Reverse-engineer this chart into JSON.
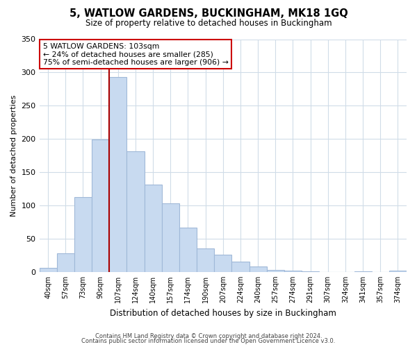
{
  "title": "5, WATLOW GARDENS, BUCKINGHAM, MK18 1GQ",
  "subtitle": "Size of property relative to detached houses in Buckingham",
  "xlabel": "Distribution of detached houses by size in Buckingham",
  "ylabel": "Number of detached properties",
  "bar_labels": [
    "40sqm",
    "57sqm",
    "73sqm",
    "90sqm",
    "107sqm",
    "124sqm",
    "140sqm",
    "157sqm",
    "174sqm",
    "190sqm",
    "207sqm",
    "224sqm",
    "240sqm",
    "257sqm",
    "274sqm",
    "291sqm",
    "307sqm",
    "324sqm",
    "341sqm",
    "357sqm",
    "374sqm"
  ],
  "bar_values": [
    6,
    28,
    113,
    199,
    293,
    181,
    131,
    103,
    67,
    35,
    26,
    15,
    8,
    3,
    2,
    1,
    0,
    0,
    1,
    0,
    2
  ],
  "bar_color": "#c8daf0",
  "bar_edge_color": "#a0b8d8",
  "vline_x_index": 4,
  "vline_color": "#aa0000",
  "ylim": [
    0,
    350
  ],
  "yticks": [
    0,
    50,
    100,
    150,
    200,
    250,
    300,
    350
  ],
  "annotation_line1": "5 WATLOW GARDENS: 103sqm",
  "annotation_line2": "← 24% of detached houses are smaller (285)",
  "annotation_line3": "75% of semi-detached houses are larger (906) →",
  "annotation_box_color": "#ffffff",
  "annotation_box_edge_color": "#cc0000",
  "footnote1": "Contains HM Land Registry data © Crown copyright and database right 2024.",
  "footnote2": "Contains public sector information licensed under the Open Government Licence v3.0.",
  "background_color": "#ffffff",
  "grid_color": "#d0dce8"
}
